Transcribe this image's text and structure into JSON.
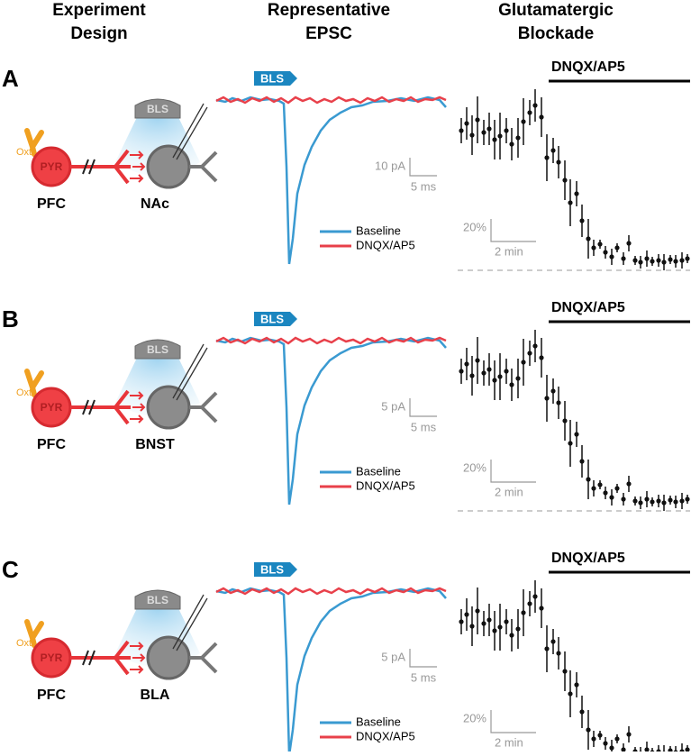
{
  "headers": [
    [
      "Experiment",
      "Design"
    ],
    [
      "Representative",
      "EPSC"
    ],
    [
      "Glutamatergic",
      "Blockade"
    ]
  ],
  "panels": [
    {
      "label": "A",
      "neuron": "PYR",
      "receptor": "Oxtr",
      "light": "BLS",
      "pre": "PFC",
      "target": "NAc",
      "scale_y": "10 pA",
      "scale_x": "5 ms",
      "legend": [
        "Baseline",
        "DNQX/AP5"
      ],
      "drug": "DNQX/AP5",
      "pct_scale": "20%",
      "time_scale": "2 min"
    },
    {
      "label": "B",
      "neuron": "PYR",
      "receptor": "Oxtr",
      "light": "BLS",
      "pre": "PFC",
      "target": "BNST",
      "scale_y": "5 pA",
      "scale_x": "5 ms",
      "legend": [
        "Baseline",
        "DNQX/AP5"
      ],
      "drug": "DNQX/AP5",
      "pct_scale": "20%",
      "time_scale": "2 min"
    },
    {
      "label": "C",
      "neuron": "PYR",
      "receptor": "Oxtr",
      "light": "BLS",
      "pre": "PFC",
      "target": "BLA",
      "scale_y": "5 pA",
      "scale_x": "5 ms",
      "legend": [
        "Baseline",
        "DNQX/AP5"
      ],
      "drug": "DNQX/AP5",
      "pct_scale": "20%",
      "time_scale": "2 min"
    }
  ]
}
